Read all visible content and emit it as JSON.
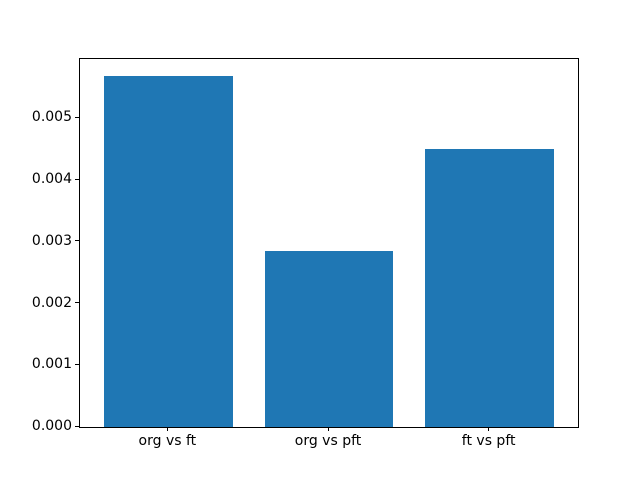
{
  "chart_data": {
    "type": "bar",
    "title": "",
    "xlabel": "",
    "ylabel": "",
    "categories": [
      "org vs ft",
      "org vs pft",
      "ft vs pft"
    ],
    "values": [
      0.00568,
      0.00285,
      0.00451
    ],
    "ytick_labels": [
      "0.000",
      "0.001",
      "0.002",
      "0.003",
      "0.004",
      "0.005"
    ],
    "ylim": [
      0,
      0.00596
    ],
    "xlim": [
      -0.55,
      2.55
    ],
    "bar_width_fraction": 0.8,
    "bar_color": "#1f77b4",
    "axis_color": "#000000",
    "background_color": "#ffffff",
    "grid": false,
    "legend": null
  }
}
